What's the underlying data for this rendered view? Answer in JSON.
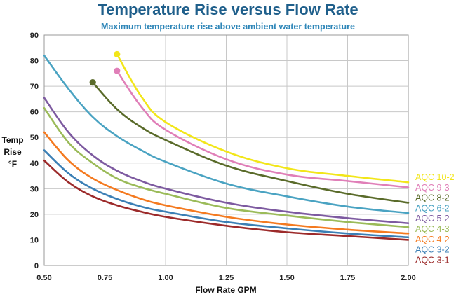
{
  "chart_data": {
    "type": "line",
    "title": "Temperature Rise versus Flow Rate",
    "subtitle": "Maximum temperature rise above ambient water temperature",
    "xlabel": "Flow Rate GPM",
    "ylabel": [
      "Temp",
      "Rise",
      "°F"
    ],
    "xlim": [
      0.5,
      2.0
    ],
    "ylim": [
      0,
      90
    ],
    "xticks": [
      "0.50",
      "0.75",
      "1.00",
      "1.25",
      "1.50",
      "1.75",
      "2.00"
    ],
    "yticks": [
      "0",
      "10",
      "20",
      "30",
      "40",
      "50",
      "60",
      "70",
      "80",
      "90"
    ],
    "grid": true,
    "legend_position": "right",
    "series": [
      {
        "name": "AQC 10-2",
        "color": "#f2e619",
        "start_marker": true,
        "x": [
          0.8,
          0.9,
          1.0,
          1.25,
          1.5,
          1.75,
          2.0
        ],
        "y": [
          82.5,
          66,
          56,
          44.5,
          38,
          35,
          32.5
        ]
      },
      {
        "name": "AQC 9-3",
        "color": "#e07fb8",
        "start_marker": true,
        "x": [
          0.8,
          0.9,
          1.0,
          1.25,
          1.5,
          1.75,
          2.0
        ],
        "y": [
          76,
          62,
          53,
          41.5,
          35.5,
          33,
          30.5
        ]
      },
      {
        "name": "AQC 8-2",
        "color": "#5a6b2a",
        "start_marker": true,
        "x": [
          0.7,
          0.8,
          0.9,
          1.0,
          1.25,
          1.5,
          1.75,
          2.0
        ],
        "y": [
          71.5,
          61,
          54,
          49,
          39,
          33,
          28,
          24.5
        ]
      },
      {
        "name": "AQC 6-2",
        "color": "#4aa3c2",
        "start_marker": false,
        "x": [
          0.5,
          0.6,
          0.7,
          0.8,
          0.9,
          1.0,
          1.25,
          1.5,
          1.75,
          2.0
        ],
        "y": [
          82,
          69,
          58,
          50.5,
          45,
          40.5,
          32,
          27,
          23,
          20.5
        ]
      },
      {
        "name": "AQC 5-2",
        "color": "#7d5aa0",
        "start_marker": false,
        "x": [
          0.5,
          0.6,
          0.7,
          0.8,
          0.9,
          1.0,
          1.25,
          1.5,
          1.75,
          2.0
        ],
        "y": [
          65.5,
          52,
          43,
          37,
          33,
          30,
          24.5,
          21,
          18.5,
          16.5
        ]
      },
      {
        "name": "AQC 4-3",
        "color": "#9bbb59",
        "start_marker": false,
        "x": [
          0.5,
          0.6,
          0.7,
          0.8,
          0.9,
          1.0,
          1.25,
          1.5,
          1.75,
          2.0
        ],
        "y": [
          61.5,
          48,
          40,
          34,
          30.5,
          28,
          22.5,
          19.5,
          17,
          15
        ]
      },
      {
        "name": "AQC 4-2",
        "color": "#f47a20",
        "start_marker": false,
        "x": [
          0.5,
          0.6,
          0.7,
          0.8,
          0.9,
          1.0,
          1.25,
          1.5,
          1.75,
          2.0
        ],
        "y": [
          52,
          41,
          34,
          29.5,
          26,
          23.5,
          19,
          16,
          14,
          12.5
        ]
      },
      {
        "name": "AQC 3-2",
        "color": "#3b7fb5",
        "start_marker": false,
        "x": [
          0.5,
          0.6,
          0.7,
          0.8,
          0.9,
          1.0,
          1.25,
          1.5,
          1.75,
          2.0
        ],
        "y": [
          45,
          36,
          30,
          26,
          23,
          21,
          17,
          14.5,
          12.5,
          11
        ]
      },
      {
        "name": "AQC 3-1",
        "color": "#9c2a2a",
        "start_marker": false,
        "x": [
          0.5,
          0.6,
          0.7,
          0.8,
          0.9,
          1.0,
          1.25,
          1.5,
          1.75,
          2.0
        ],
        "y": [
          41,
          32.5,
          27,
          23.5,
          21,
          19,
          15.5,
          13,
          11.5,
          10
        ]
      }
    ]
  }
}
